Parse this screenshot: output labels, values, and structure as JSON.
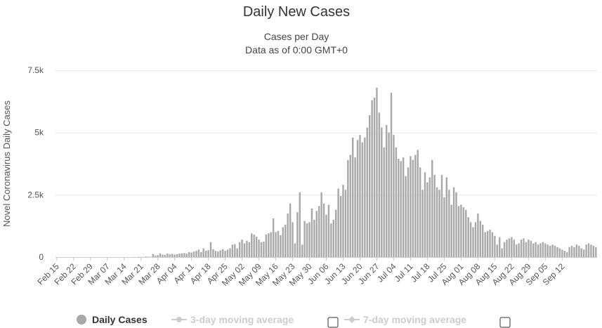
{
  "chart_data": {
    "type": "bar",
    "title": "Daily New Cases",
    "subtitle_lines": [
      "Cases per Day",
      "Data as of 0:00 GMT+0"
    ],
    "ylabel": "Novel Coronavirus Daily Cases",
    "xlabel": "",
    "ylim": [
      0,
      7500
    ],
    "yticks": [
      {
        "value": 0,
        "label": "0"
      },
      {
        "value": 2500,
        "label": "2.5k"
      },
      {
        "value": 5000,
        "label": "5k"
      },
      {
        "value": 7500,
        "label": "7.5k"
      }
    ],
    "grid": true,
    "start_date": "Feb 15",
    "x_tick_labels": [
      "Feb 15",
      "Feb 22",
      "Feb 29",
      "Mar 07",
      "Mar 14",
      "Mar 21",
      "Mar 28",
      "Apr 04",
      "Apr 11",
      "Apr 18",
      "Apr 25",
      "May 02",
      "May 09",
      "May 16",
      "May 23",
      "May 30",
      "Jun 06",
      "Jun 13",
      "Jun 20",
      "Jun 27",
      "Jul 04",
      "Jul 11",
      "Jul 18",
      "Jul 25",
      "Aug 01",
      "Aug 08",
      "Aug 15",
      "Aug 22",
      "Aug 29",
      "Sep 05",
      "Sep 12"
    ],
    "series": [
      {
        "name": "Daily Cases",
        "color": "#a8a8a8",
        "values": [
          0,
          0,
          0,
          0,
          0,
          0,
          0,
          0,
          0,
          0,
          0,
          0,
          0,
          0,
          0,
          0,
          0,
          0,
          0,
          0,
          0,
          0,
          0,
          0,
          0,
          0,
          0,
          0,
          0,
          0,
          0,
          0,
          5,
          0,
          10,
          5,
          5,
          20,
          15,
          10,
          120,
          60,
          80,
          150,
          100,
          90,
          140,
          110,
          130,
          100,
          120,
          140,
          150,
          160,
          140,
          200,
          180,
          220,
          250,
          300,
          200,
          350,
          250,
          280,
          600,
          320,
          250,
          230,
          270,
          320,
          250,
          300,
          350,
          500,
          520,
          350,
          600,
          700,
          550,
          650,
          600,
          950,
          900,
          820,
          700,
          600,
          620,
          900,
          950,
          1000,
          1550,
          1000,
          1050,
          880,
          1200,
          1300,
          1750,
          2150,
          1400,
          550,
          1800,
          2600,
          500,
          1450,
          1350,
          1400,
          1950,
          1500,
          1850,
          2050,
          2600,
          2150,
          1700,
          2100,
          1350,
          1500,
          1900,
          2750,
          2450,
          2900,
          2700,
          3900,
          4100,
          4800,
          4000,
          4700,
          4900,
          4600,
          4800,
          5200,
          5700,
          6300,
          6400,
          6800,
          5800,
          5200,
          4400,
          5300,
          5000,
          6600,
          4900,
          4400,
          3950,
          3850,
          4000,
          3250,
          3600,
          4050,
          3900,
          4100,
          4300,
          3600,
          2700,
          3400,
          3000,
          3200,
          3900,
          3300,
          2800,
          2700,
          3300,
          2400,
          3200,
          2700,
          2100,
          2800,
          2600,
          2050,
          2100,
          2000,
          1900,
          1600,
          1400,
          1200,
          1400,
          1750,
          1450,
          1300,
          1000,
          1050,
          1100,
          1000,
          850,
          500,
          800,
          350,
          600,
          700,
          750,
          800,
          700,
          500,
          550,
          700,
          750,
          600,
          700,
          650,
          550,
          600,
          500,
          550,
          600,
          550,
          500,
          450,
          500,
          450,
          400,
          350,
          300,
          250,
          200,
          400,
          450,
          400,
          500,
          450,
          350,
          300,
          500,
          550,
          500,
          450,
          400
        ]
      }
    ],
    "legend": {
      "placement": "bottom",
      "items": [
        {
          "label": "Daily Cases",
          "active": true,
          "color": "#a8a8a8"
        },
        {
          "label": "3-day moving average",
          "active": false,
          "color": "#cccccc"
        },
        {
          "label": "7-day moving average",
          "active": false,
          "color": "#cccccc"
        }
      ]
    }
  }
}
